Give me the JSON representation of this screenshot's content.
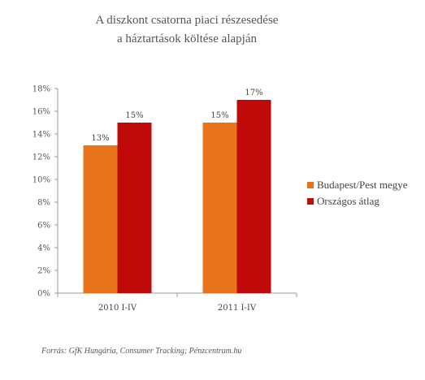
{
  "title_line1": "A diszkont csatorna piaci részesedése",
  "title_line2": "a háztartások költése alapján",
  "source": "Forrás: GfK Hungária, Consumer Tracking; Pénzcentrum.hu",
  "colors": {
    "series1": "#E8731A",
    "series2": "#C00A0A",
    "axis": "#999999"
  },
  "chart_data": {
    "type": "bar",
    "categories": [
      "2010 I-IV",
      "2011 I-IV"
    ],
    "series": [
      {
        "name": "Budapest/Pest megye",
        "values": [
          13,
          15
        ],
        "labels": [
          "13%",
          "15%"
        ]
      },
      {
        "name": "Országos átlag",
        "values": [
          15,
          17
        ],
        "labels": [
          "15%",
          "17%"
        ]
      }
    ],
    "yticks": [
      "0%",
      "2%",
      "4%",
      "6%",
      "8%",
      "10%",
      "12%",
      "14%",
      "16%",
      "18%"
    ],
    "ylim": [
      0,
      18
    ],
    "legend": "right",
    "grid": false
  }
}
